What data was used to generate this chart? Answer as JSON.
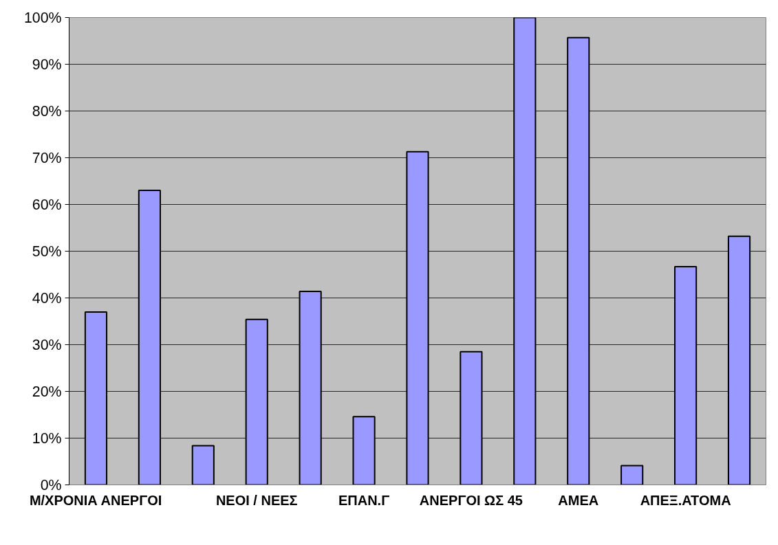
{
  "chart_data": {
    "type": "bar",
    "categories": [
      "Μ/ΧΡΟΝΙΑ ΑΝΕΡΓΟΙ",
      null,
      null,
      "ΝΕΟΙ / ΝΕΕΣ",
      null,
      "ΕΠΑΝ.Γ",
      null,
      "ΑΝΕΡΓΟΙ ΩΣ 45",
      null,
      "ΑΜΕΑ",
      null,
      "ΑΠΕΞ.ΑΤΟΜΑ",
      null
    ],
    "values": [
      37.0,
      63.0,
      8.4,
      35.4,
      41.4,
      14.6,
      71.3,
      28.5,
      100,
      95.7,
      4.1,
      46.7,
      53.2
    ],
    "color": "#9999ff",
    "ylim": [
      0,
      100
    ],
    "yticks": [
      {
        "value": 0,
        "label": "0%"
      },
      {
        "value": 10,
        "label": "10%"
      },
      {
        "value": 20,
        "label": "20%"
      },
      {
        "value": 30,
        "label": "30%"
      },
      {
        "value": 40,
        "label": "40%"
      },
      {
        "value": 50,
        "label": "50%"
      },
      {
        "value": 60,
        "label": "60%"
      },
      {
        "value": 70,
        "label": "70%"
      },
      {
        "value": 80,
        "label": "80%"
      },
      {
        "value": 90,
        "label": "90%"
      },
      {
        "value": 100,
        "label": "100%"
      }
    ],
    "grid": "y"
  }
}
